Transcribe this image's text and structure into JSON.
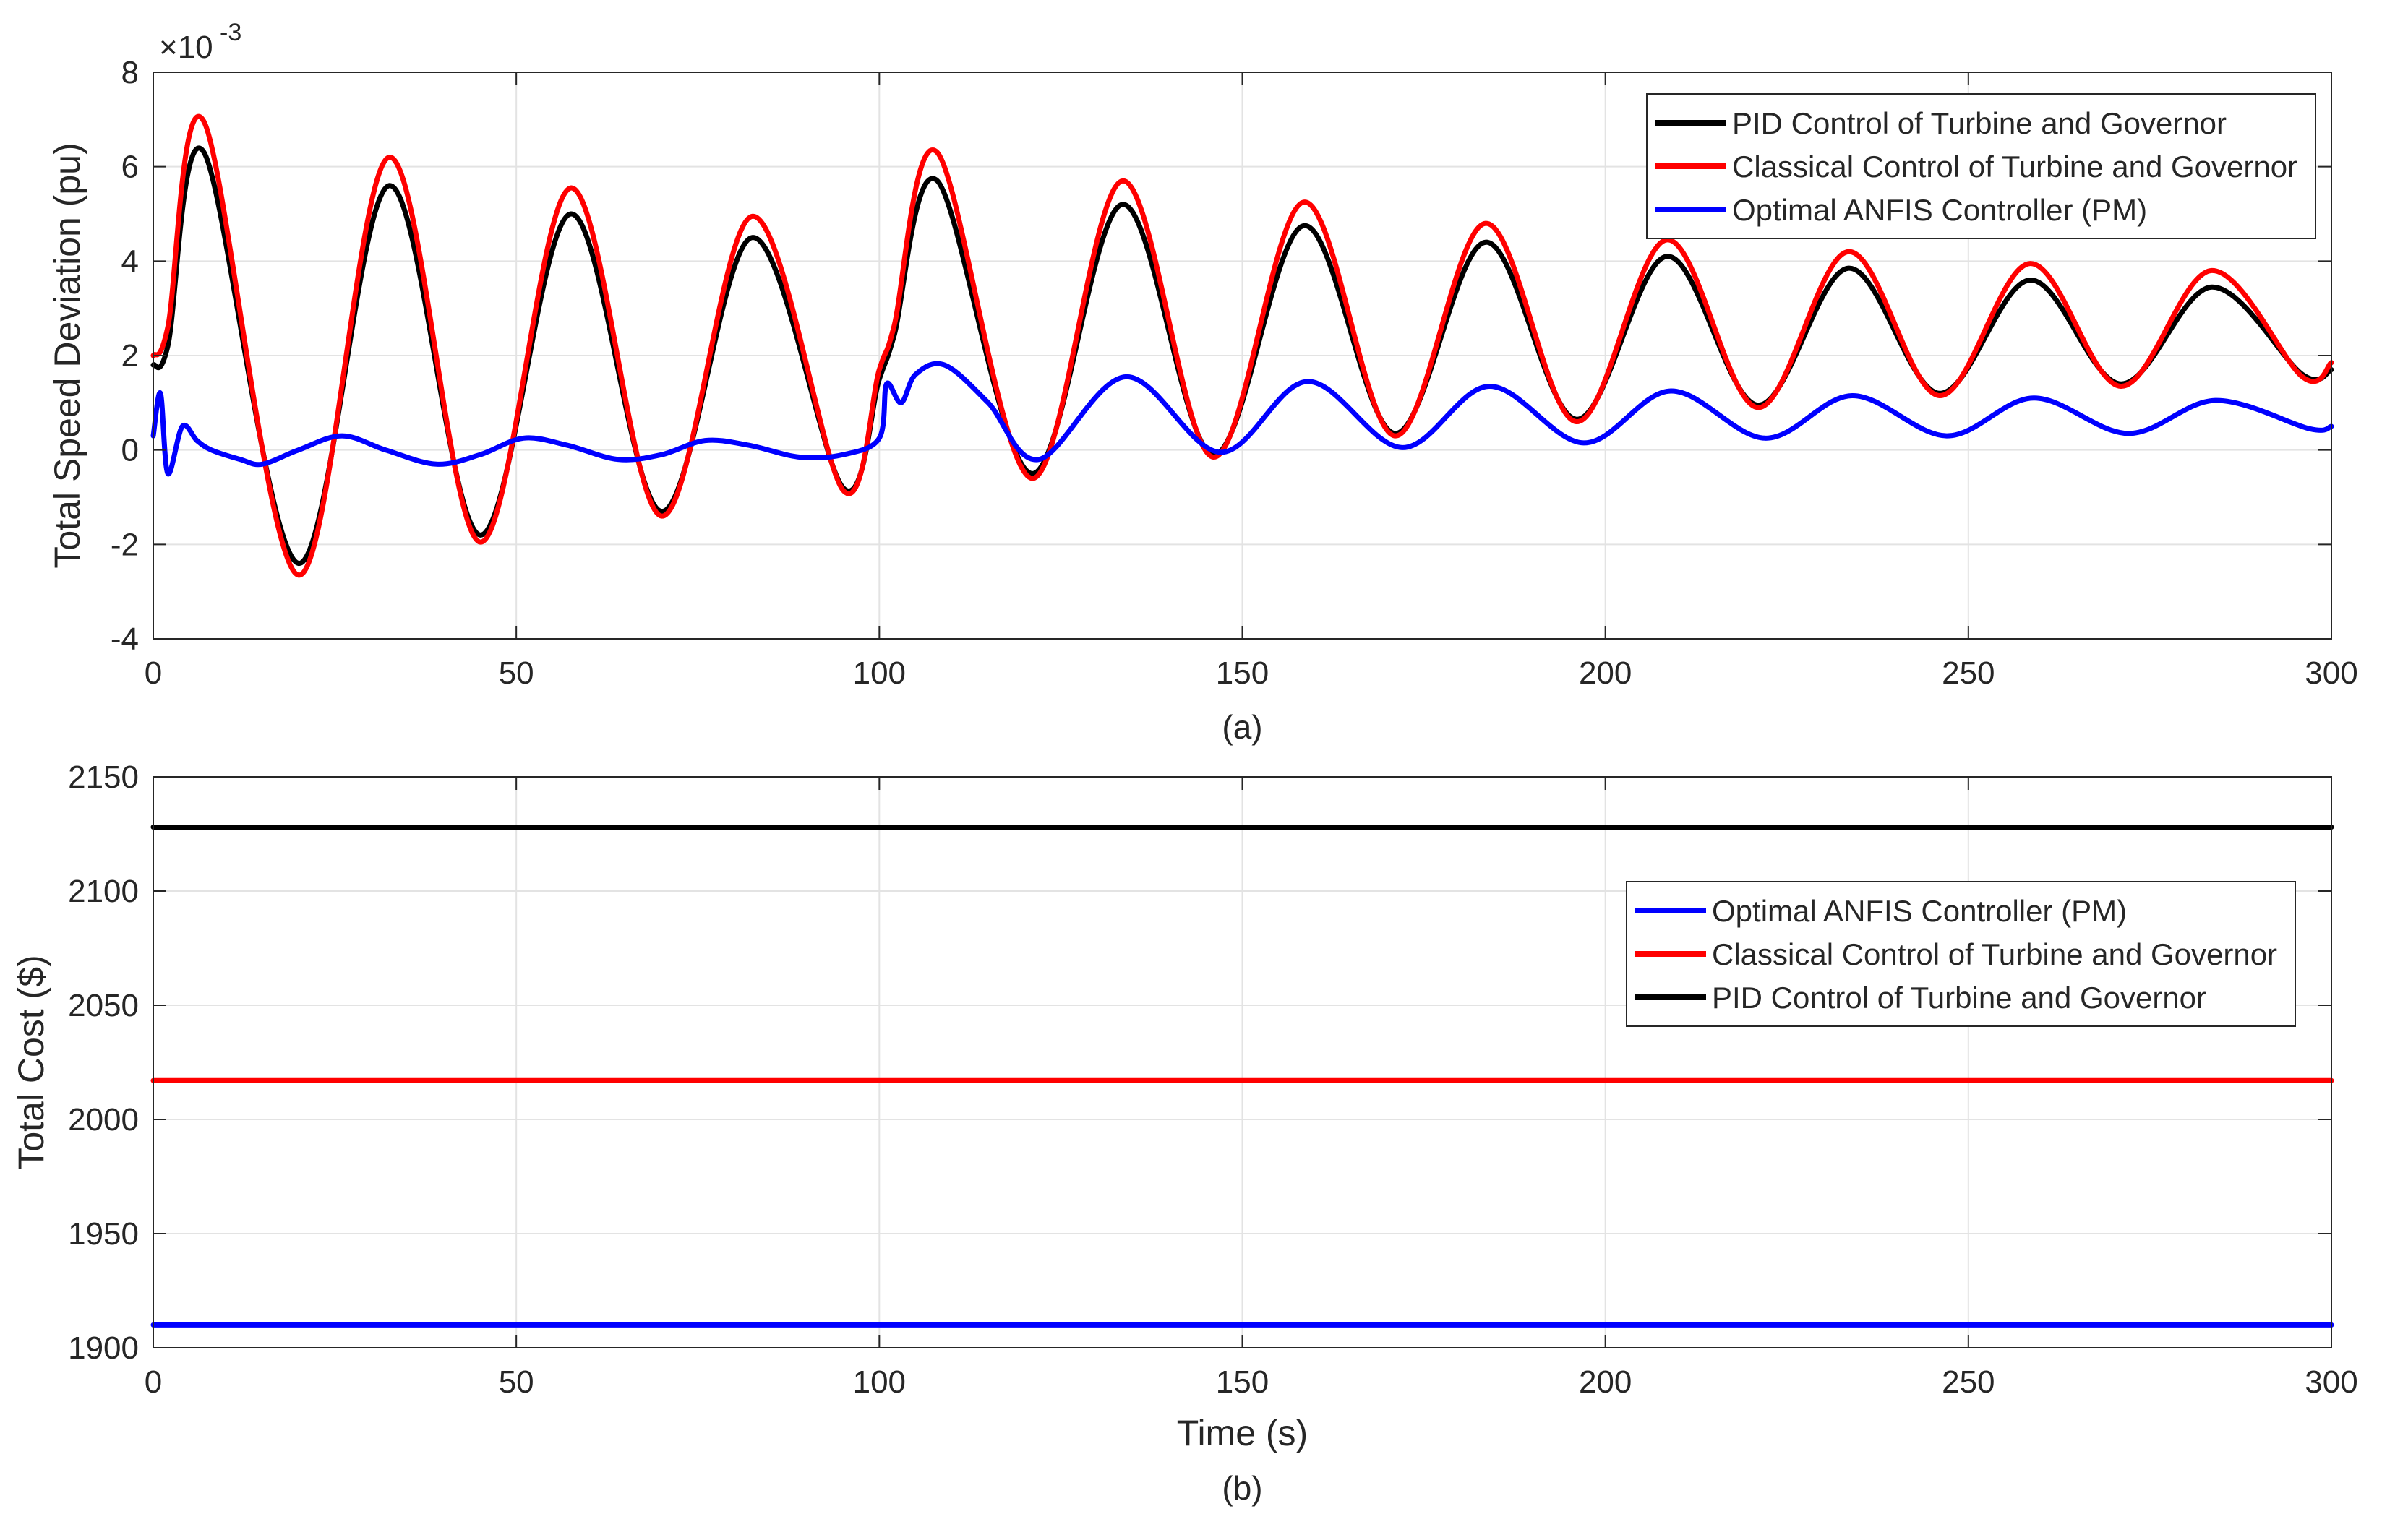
{
  "chart_data": [
    {
      "type": "line",
      "panel_label": "(a)",
      "title": "",
      "xlabel": "",
      "ylabel": "Total Speed Deviation (pu)",
      "exponent_label": "×10",
      "exponent_power": "-3",
      "xlim": [
        0,
        300
      ],
      "ylim": [
        -4,
        8
      ],
      "grid": true,
      "legend_position": "top-right",
      "xticks": [
        0,
        50,
        100,
        150,
        200,
        250,
        300
      ],
      "xtick_labels": [
        "0",
        "50",
        "100",
        "150",
        "200",
        "250",
        "300"
      ],
      "yticks": [
        -4,
        -2,
        0,
        2,
        4,
        6,
        8
      ],
      "ytick_labels": [
        "-4",
        "-2",
        "0",
        "2",
        "4",
        "6",
        "8"
      ],
      "legend": [
        {
          "name": "PID Control of Turbine and Governor",
          "color": "#000000"
        },
        {
          "name": "Classical Control of Turbine and Governor",
          "color": "#ff0000"
        },
        {
          "name": "Optimal ANFIS Controller (PM)",
          "color": "#0000ff"
        }
      ],
      "series": [
        {
          "name": "PID Control of Turbine and Governor",
          "color": "#000000",
          "x": [
            0,
            2,
            7,
            20,
            32.5,
            45,
            57.5,
            70,
            82.5,
            95,
            100,
            102,
            108,
            121,
            133.5,
            146,
            158.5,
            171,
            183.5,
            196,
            208.5,
            221,
            233.5,
            246,
            258.5,
            271,
            283.5,
            296,
            300
          ],
          "y": [
            1.8,
            2.2,
            6.3,
            -2.4,
            5.6,
            -1.8,
            5.0,
            -1.3,
            4.5,
            -0.8,
            1.5,
            2.4,
            5.7,
            -0.5,
            5.2,
            -0.1,
            4.75,
            0.35,
            4.4,
            0.65,
            4.1,
            0.95,
            3.85,
            1.2,
            3.6,
            1.4,
            3.45,
            1.6,
            1.7
          ]
        },
        {
          "name": "Classical Control of Turbine and Governor",
          "color": "#ff0000",
          "x": [
            0,
            2,
            7,
            20,
            32.5,
            45,
            57.5,
            70,
            82.5,
            95,
            100,
            102,
            108,
            121,
            133.5,
            146,
            158.5,
            171,
            183.5,
            196,
            208.5,
            221,
            233.5,
            246,
            258.5,
            271,
            283.5,
            296,
            300
          ],
          "y": [
            2.0,
            2.6,
            6.95,
            -2.65,
            6.2,
            -1.95,
            5.55,
            -1.4,
            4.95,
            -0.85,
            1.7,
            2.6,
            6.3,
            -0.6,
            5.7,
            -0.15,
            5.25,
            0.3,
            4.8,
            0.6,
            4.45,
            0.9,
            4.2,
            1.15,
            3.95,
            1.35,
            3.8,
            1.55,
            1.85
          ]
        },
        {
          "name": "Optimal ANFIS Controller (PM)",
          "color": "#0000ff",
          "x": [
            0,
            1,
            2,
            4,
            6,
            8,
            12,
            15,
            20,
            26,
            32,
            39,
            45,
            51,
            57,
            64,
            70,
            76,
            82,
            89,
            95,
            100,
            101,
            103,
            105,
            109,
            115,
            122,
            134,
            147,
            159,
            172,
            184,
            197,
            209,
            222,
            234,
            247,
            259,
            272,
            284,
            297,
            300
          ],
          "y": [
            0.3,
            1.2,
            -0.5,
            0.5,
            0.2,
            0.0,
            -0.2,
            -0.3,
            0.0,
            0.3,
            0.0,
            -0.3,
            -0.1,
            0.25,
            0.1,
            -0.2,
            -0.1,
            0.2,
            0.1,
            -0.15,
            -0.1,
            0.25,
            1.4,
            1.0,
            1.6,
            1.8,
            1.0,
            -0.2,
            1.55,
            -0.05,
            1.45,
            0.05,
            1.35,
            0.15,
            1.25,
            0.25,
            1.15,
            0.3,
            1.1,
            0.35,
            1.05,
            0.45,
            0.5
          ]
        }
      ]
    },
    {
      "type": "line",
      "panel_label": "(b)",
      "title": "",
      "xlabel": "Time (s)",
      "ylabel": "Total Cost ($)",
      "xlim": [
        0,
        300
      ],
      "ylim": [
        1900,
        2150
      ],
      "grid": true,
      "legend_position": "upper-right",
      "xticks": [
        0,
        50,
        100,
        150,
        200,
        250,
        300
      ],
      "xtick_labels": [
        "0",
        "50",
        "100",
        "150",
        "200",
        "250",
        "300"
      ],
      "yticks": [
        1900,
        1950,
        2000,
        2050,
        2100,
        2150
      ],
      "ytick_labels": [
        "1900",
        "1950",
        "2000",
        "2050",
        "2100",
        "2150"
      ],
      "legend": [
        {
          "name": "Optimal ANFIS Controller (PM)",
          "color": "#0000ff"
        },
        {
          "name": "Classical Control of Turbine and Governor",
          "color": "#ff0000"
        },
        {
          "name": "PID Control of Turbine and Governor",
          "color": "#000000"
        }
      ],
      "series": [
        {
          "name": "PID Control of Turbine and Governor",
          "color": "#000000",
          "x": [
            0,
            300
          ],
          "y": [
            2128,
            2128
          ]
        },
        {
          "name": "Classical Control of Turbine and Governor",
          "color": "#ff0000",
          "x": [
            0,
            300
          ],
          "y": [
            2017,
            2017
          ]
        },
        {
          "name": "Optimal ANFIS Controller (PM)",
          "color": "#0000ff",
          "x": [
            0,
            300
          ],
          "y": [
            1910,
            1910
          ]
        }
      ]
    }
  ]
}
